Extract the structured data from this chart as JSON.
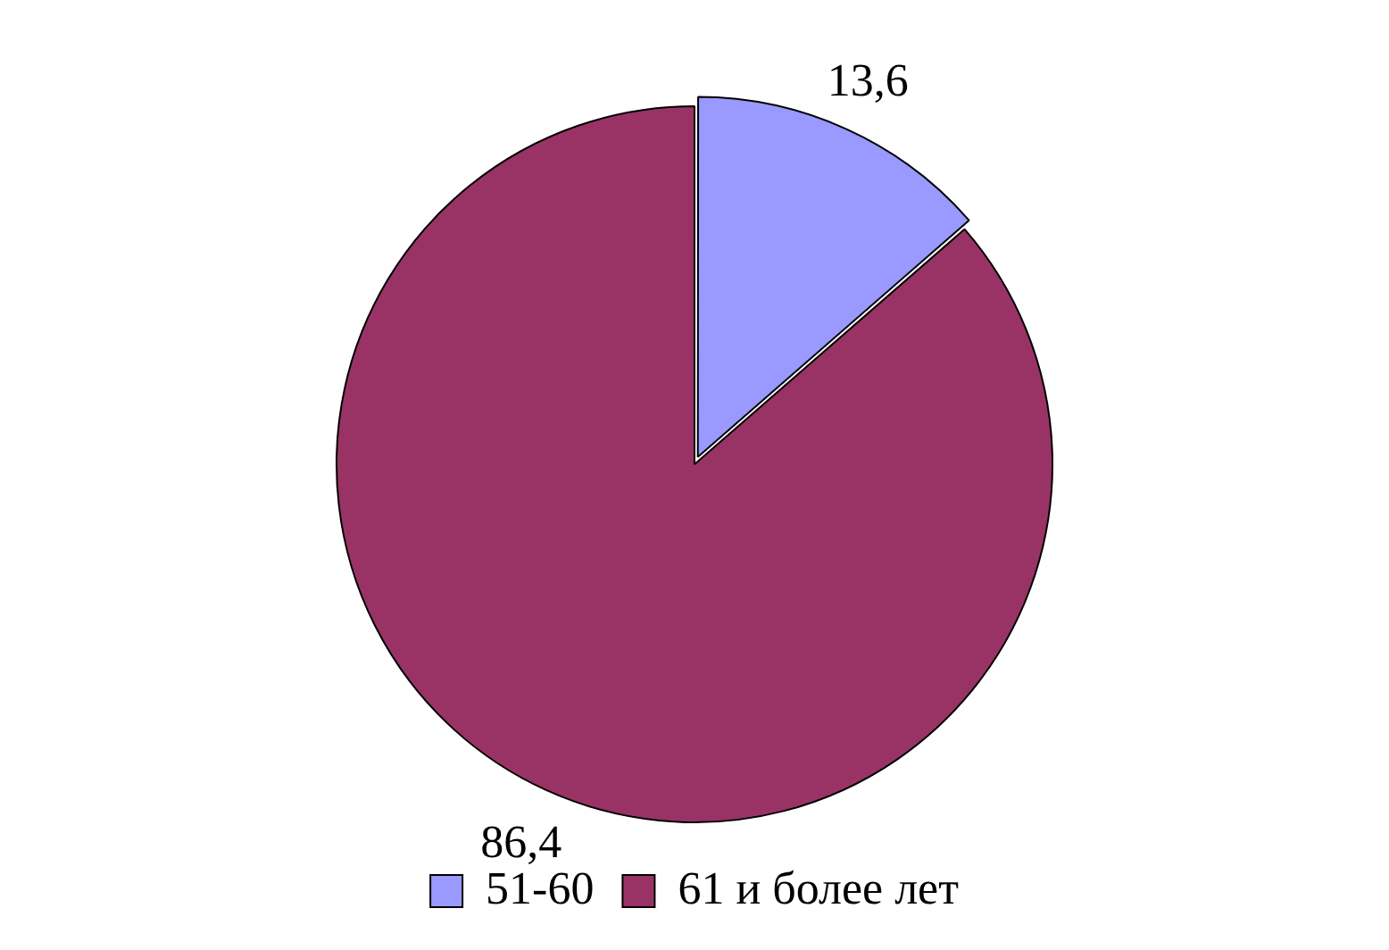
{
  "chart_data": {
    "type": "pie",
    "categories": [
      "51-60",
      "61 и более лет"
    ],
    "values": [
      13.6,
      86.4
    ],
    "colors": [
      "#9999ff",
      "#993366"
    ],
    "value_labels": [
      "13,6",
      "86,4"
    ],
    "legend": "bottom"
  }
}
